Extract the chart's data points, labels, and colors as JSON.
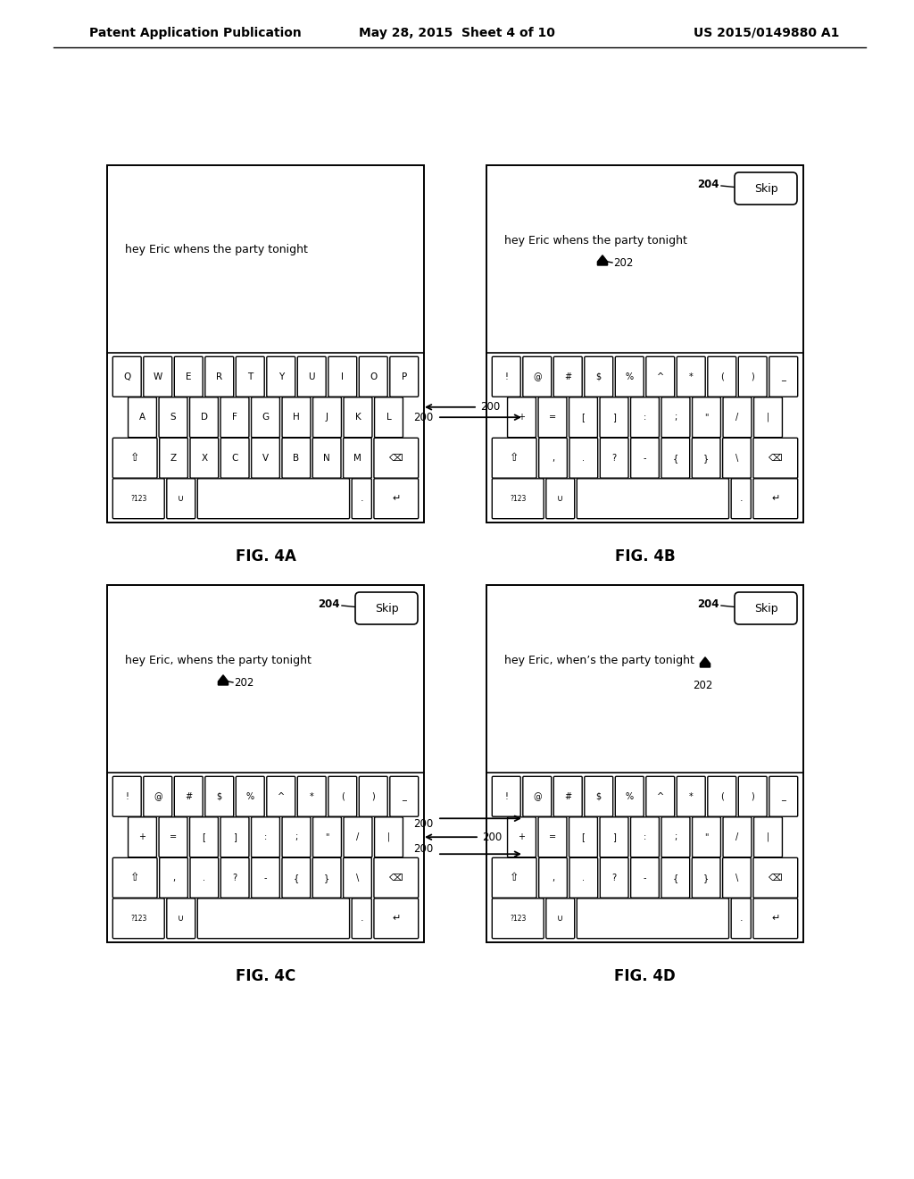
{
  "title_left": "Patent Application Publication",
  "title_mid": "May 28, 2015  Sheet 4 of 10",
  "title_right": "US 2015/0149880 A1",
  "fig4a_text": "hey Eric whens the party tonight",
  "fig4b_text": "hey Eric whens the party tonight",
  "fig4c_text": "hey Eric, whens the party tonight",
  "fig4d_text": "hey Eric, when’s the party tonight",
  "fig4a_label": "FIG. 4A",
  "fig4b_label": "FIG. 4B",
  "fig4c_label": "FIG. 4C",
  "fig4d_label": "FIG. 4D",
  "bg_color": "#ffffff",
  "skip_label": "Skip",
  "label_200": "200",
  "label_202": "202",
  "label_204": "204",
  "qwerty_row1": [
    "Q",
    "W",
    "E",
    "R",
    "T",
    "Y",
    "U",
    "I",
    "O",
    "P"
  ],
  "qwerty_row2": [
    "A",
    "S",
    "D",
    "F",
    "G",
    "H",
    "J",
    "K",
    "L"
  ],
  "qwerty_row3": [
    "Z",
    "X",
    "C",
    "V",
    "B",
    "N",
    "M"
  ],
  "sym_row1": [
    "!",
    "@",
    "#",
    "$",
    "%",
    "^",
    "*",
    "(",
    ")",
    "_"
  ],
  "sym_row2": [
    "+",
    "=",
    "[",
    "]",
    ":",
    ";",
    "\"",
    "/",
    "|"
  ],
  "sym_row3": [
    ",",
    ".",
    "?",
    "-",
    "{",
    "}",
    "\\"
  ]
}
